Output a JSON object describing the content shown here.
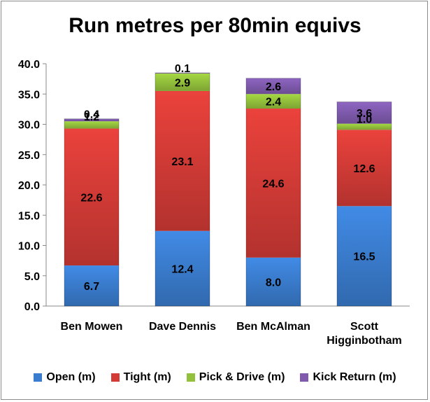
{
  "chart_data": {
    "type": "bar",
    "stacked": true,
    "title": "Run metres per 80min equivs",
    "categories": [
      [
        "Ben Mowen"
      ],
      [
        "Dave Dennis"
      ],
      [
        "Ben McAlman"
      ],
      [
        "Scott",
        "Higginbotham"
      ]
    ],
    "series": [
      {
        "name": "Open (m)",
        "color": "#3a7ccd",
        "values": [
          6.7,
          12.4,
          8.0,
          16.5
        ],
        "labels": [
          "6.7",
          "12.4",
          "8.0",
          "16.5"
        ]
      },
      {
        "name": "Tight (m)",
        "color": "#d23b36",
        "values": [
          22.6,
          23.1,
          24.6,
          12.6
        ],
        "labels": [
          "22.6",
          "23.1",
          "24.6",
          "12.6"
        ]
      },
      {
        "name": "Pick & Drive (m)",
        "color": "#93c13c",
        "values": [
          1.2,
          2.9,
          2.4,
          1.0
        ],
        "labels": [
          "1.2",
          "2.9",
          "2.4",
          "1.0"
        ]
      },
      {
        "name": "Kick Return (m)",
        "color": "#7f5aad",
        "values": [
          0.4,
          0.1,
          2.6,
          3.6
        ],
        "labels": [
          "0.4",
          "0.1",
          "2.6",
          "3.6"
        ]
      }
    ],
    "ylim": [
      0,
      40
    ],
    "yticks": [
      "0.0",
      "5.0",
      "10.0",
      "15.0",
      "20.0",
      "25.0",
      "30.0",
      "35.0",
      "40.0"
    ],
    "grid": false,
    "legend_position": "bottom"
  }
}
